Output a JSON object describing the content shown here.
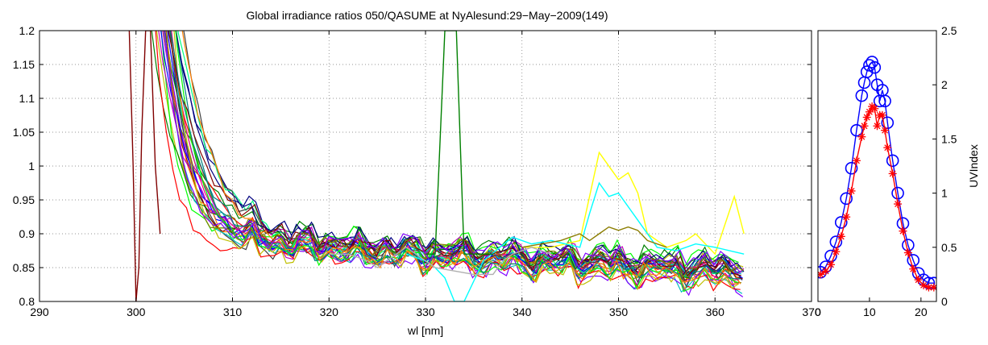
{
  "colors": {
    "series_palette": [
      "#0000ff",
      "#008000",
      "#ff0000",
      "#00bfbf",
      "#bf00bf",
      "#bfbf00",
      "#404040",
      "#000080",
      "#00ff00",
      "#800000",
      "#808000",
      "#008080",
      "#ff8000",
      "#8000ff",
      "#00ff80",
      "#ff0080"
    ],
    "yellow": "#ffff00",
    "cyan": "#00ffff",
    "gray": "#b0b0b0",
    "dark_green": "#008000",
    "olive": "#8b7d00",
    "dark_red": "#800000",
    "uv_blue": "#0000ff",
    "uv_red": "#ff0000"
  },
  "chart_data": [
    {
      "type": "line",
      "title": "Global irradiance ratios 050/QASUME at NyAlesund:29−May−2009(149)",
      "xlabel": "wl [nm]",
      "ylabel": "",
      "xlim": [
        290,
        370
      ],
      "ylim": [
        0.8,
        1.2
      ],
      "xticks": [
        290,
        300,
        310,
        320,
        330,
        340,
        350,
        360,
        370
      ],
      "yticks": [
        0.8,
        0.85,
        0.9,
        0.95,
        1,
        1.05,
        1.1,
        1.15,
        1.2
      ],
      "grid": true,
      "series_count": 30,
      "x_range_of_series": [
        300,
        363
      ],
      "plateau_level": 0.88,
      "notable_traces": [
        {
          "color": "yellow",
          "x": [
            340,
            343,
            346,
            348,
            350,
            351,
            352,
            353,
            355,
            357,
            358,
            360,
            362,
            363
          ],
          "y": [
            0.88,
            0.88,
            0.89,
            1.02,
            0.98,
            0.99,
            0.96,
            0.9,
            0.88,
            0.89,
            0.9,
            0.87,
            0.955,
            0.9
          ]
        },
        {
          "color": "cyan",
          "x": [
            328,
            330,
            331,
            332,
            333,
            334,
            336,
            339,
            341,
            343,
            346,
            347,
            348,
            349,
            350,
            352,
            354,
            356,
            358,
            360,
            363
          ],
          "y": [
            0.87,
            0.86,
            0.85,
            0.835,
            0.8,
            0.8,
            0.86,
            0.895,
            0.885,
            0.89,
            0.88,
            0.93,
            0.975,
            0.955,
            0.96,
            0.92,
            0.88,
            0.875,
            0.885,
            0.88,
            0.87
          ]
        },
        {
          "color": "dark_green",
          "x": [
            330,
            331,
            332,
            332.7,
            333.2,
            334,
            335,
            337
          ],
          "y": [
            0.87,
            0.87,
            1.2,
            1.2,
            1.2,
            0.87,
            0.87,
            0.87
          ]
        },
        {
          "color": "gray",
          "x": [
            320,
            322,
            324,
            325,
            326,
            328,
            330,
            331,
            333,
            335,
            337,
            338,
            339,
            341,
            343
          ],
          "y": [
            0.87,
            0.87,
            0.86,
            0.85,
            0.86,
            0.88,
            0.86,
            0.85,
            0.845,
            0.84,
            0.84,
            0.86,
            0.87,
            0.88,
            0.87
          ]
        },
        {
          "color": "olive",
          "x": [
            340,
            344,
            346,
            347,
            348,
            349,
            350,
            351,
            352,
            353,
            355
          ],
          "y": [
            0.88,
            0.89,
            0.9,
            0.89,
            0.9,
            0.91,
            0.905,
            0.91,
            0.905,
            0.89,
            0.88
          ]
        },
        {
          "color": "dark_red",
          "x": [
            299.3,
            299.7,
            300,
            300.3,
            300.6,
            301,
            301.5,
            302,
            302.5
          ],
          "y": [
            1.2,
            1.0,
            0.8,
            0.85,
            1.05,
            1.2,
            1.2,
            1.0,
            0.9
          ]
        }
      ]
    },
    {
      "type": "line",
      "title": "",
      "xlabel": "",
      "ylabel": "UVIndex",
      "xlim": [
        0,
        23
      ],
      "ylim": [
        0,
        2.5
      ],
      "xticks": [
        0,
        10,
        20
      ],
      "yticks": [
        0,
        0.5,
        1,
        1.5,
        2,
        2.5
      ],
      "yaxis_position": "right",
      "grid": false,
      "series": [
        {
          "marker": "circle",
          "color": "uv_blue",
          "x": [
            0.5,
            1.5,
            2.5,
            3.5,
            4.5,
            5.5,
            6.5,
            7.5,
            8.5,
            9.0,
            9.5,
            10.0,
            10.5,
            11.0,
            11.5,
            12.0,
            12.5,
            13.0,
            13.5,
            14.5,
            15.5,
            16.5,
            17.5,
            18.5,
            19.5,
            20.5,
            21.5,
            22.5
          ],
          "y": [
            0.27,
            0.32,
            0.42,
            0.55,
            0.73,
            0.95,
            1.23,
            1.58,
            1.9,
            2.02,
            2.12,
            2.18,
            2.21,
            2.16,
            2.0,
            1.85,
            1.95,
            1.85,
            1.65,
            1.3,
            1.0,
            0.72,
            0.52,
            0.38,
            0.26,
            0.2,
            0.17,
            0.17
          ]
        },
        {
          "marker": "star",
          "color": "uv_red",
          "x": [
            0.5,
            1.5,
            2.5,
            3.5,
            4.5,
            5.5,
            6.5,
            7.5,
            8.5,
            9.0,
            9.5,
            10.0,
            10.5,
            11.0,
            11.5,
            12.0,
            12.5,
            13.0,
            13.5,
            14.5,
            15.5,
            16.5,
            17.5,
            18.5,
            19.5,
            20.5,
            21.5,
            22.5
          ],
          "y": [
            0.25,
            0.28,
            0.34,
            0.46,
            0.6,
            0.78,
            1.02,
            1.3,
            1.52,
            1.62,
            1.7,
            1.75,
            1.8,
            1.78,
            1.62,
            1.72,
            1.72,
            1.58,
            1.42,
            1.18,
            0.9,
            0.65,
            0.45,
            0.3,
            0.2,
            0.15,
            0.13,
            0.13
          ]
        }
      ]
    }
  ]
}
